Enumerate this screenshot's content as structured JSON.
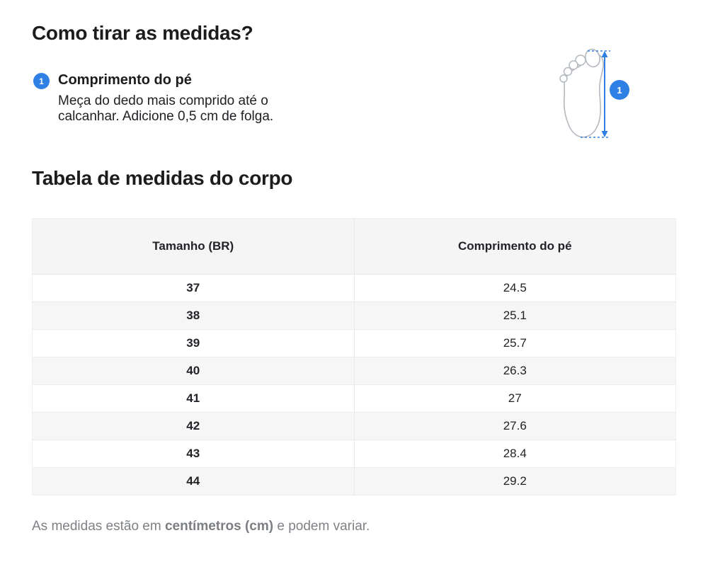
{
  "page": {
    "title": "Como tirar as medidas?",
    "accent_color": "#2F80E4"
  },
  "step": {
    "number": "1",
    "heading": "Comprimento do pé",
    "description_line1": "Meça do dedo mais comprido até o",
    "description_line2": "calcanhar. Adicione 0,5 cm de folga."
  },
  "illustration": {
    "name": "foot-length-measurement",
    "badge_number": "1",
    "arrow_color": "#2F80E4",
    "outline_color": "#b3b9bf"
  },
  "table_section": {
    "title": "Tabela de medidas do corpo",
    "columns": [
      "Tamanho (BR)",
      "Comprimento do pé"
    ],
    "rows": [
      {
        "size": "37",
        "length": "24.5"
      },
      {
        "size": "38",
        "length": "25.1"
      },
      {
        "size": "39",
        "length": "25.7"
      },
      {
        "size": "40",
        "length": "26.3"
      },
      {
        "size": "41",
        "length": "27"
      },
      {
        "size": "42",
        "length": "27.6"
      },
      {
        "size": "43",
        "length": "28.4"
      },
      {
        "size": "44",
        "length": "29.2"
      }
    ]
  },
  "footer": {
    "prefix": "As medidas estão em ",
    "bold": "centímetros (cm)",
    "suffix": " e podem variar."
  }
}
